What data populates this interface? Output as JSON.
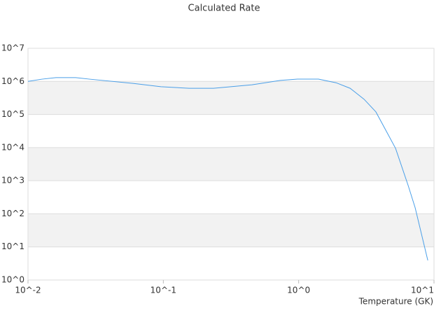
{
  "chart_data": {
    "type": "line",
    "title": "Calculated Rate",
    "x_label": "Temperature (GK)",
    "log_x": true,
    "log_y": true,
    "grid": true,
    "banded": true,
    "x": [
      0.01,
      0.0127,
      0.0161,
      0.0225,
      0.0285,
      0.0597,
      0.096,
      0.155,
      0.235,
      0.452,
      0.73,
      0.98,
      1.4,
      1.89,
      2.4,
      3.04,
      3.72,
      4.51,
      5.2,
      6.44,
      7.26,
      9.0
    ],
    "series": [
      {
        "color": "#4a9fe8",
        "values": [
          1000000,
          1170000,
          1300000,
          1300000,
          1170000,
          870000,
          690000,
          620000,
          620000,
          790000,
          1070000,
          1170000,
          1170000,
          910000,
          620000,
          290000,
          120000,
          28000,
          9500,
          720,
          152,
          3.9
        ]
      }
    ],
    "xlim": [
      0.01,
      10
    ],
    "xticks": [
      {
        "value": 0.01,
        "label": "10^-2"
      },
      {
        "value": 0.1,
        "label": "10^-1"
      },
      {
        "value": 1,
        "label": "10^0"
      },
      {
        "value": 10,
        "label": "10^1"
      }
    ],
    "ylim": [
      1,
      10000000
    ],
    "yticks": [
      {
        "value": 1,
        "label": "10^0"
      },
      {
        "value": 10,
        "label": "10^1"
      },
      {
        "value": 100,
        "label": "10^2"
      },
      {
        "value": 1000,
        "label": "10^3"
      },
      {
        "value": 10000,
        "label": "10^4"
      },
      {
        "value": 100000,
        "label": "10^5"
      },
      {
        "value": 1000000,
        "label": "10^6"
      },
      {
        "value": 10000000,
        "label": "10^7"
      }
    ]
  }
}
